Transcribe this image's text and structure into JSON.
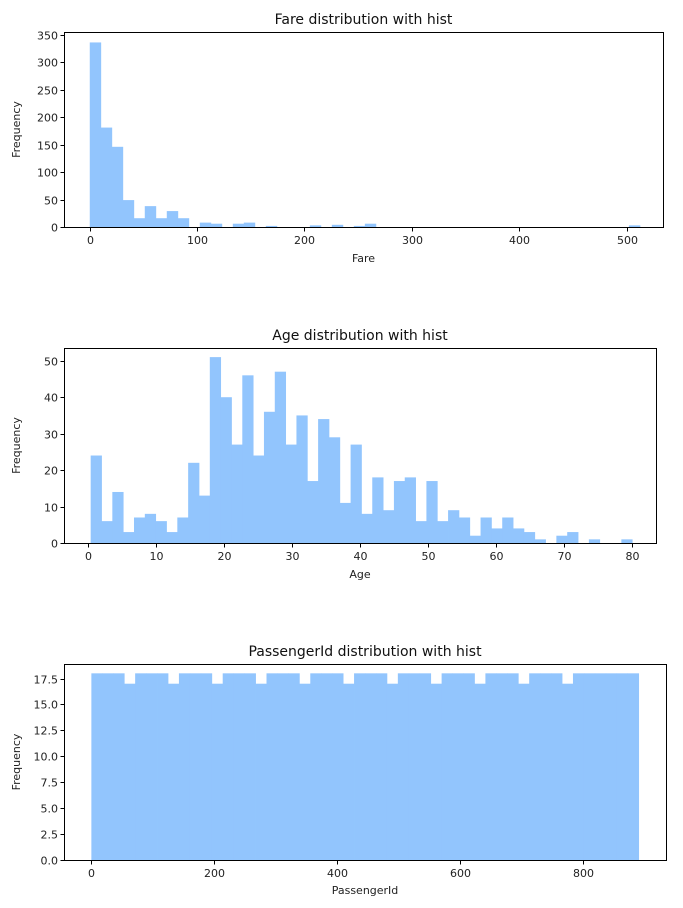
{
  "chart_data": [
    {
      "type": "bar",
      "title": "Fare distribution with hist",
      "xlabel": "Fare",
      "ylabel": "Frequency",
      "xlim": [
        -24,
        534
      ],
      "ylim": [
        0,
        355
      ],
      "xticks": [
        0,
        100,
        200,
        300,
        400,
        500
      ],
      "yticks": [
        0,
        50,
        100,
        150,
        200,
        250,
        300,
        350
      ],
      "bin_start": 0,
      "bin_width": 10.25,
      "values": [
        336,
        181,
        146,
        49,
        16,
        38,
        16,
        29,
        16,
        0,
        8,
        6,
        0,
        6,
        8,
        0,
        2,
        0,
        0,
        0,
        3,
        0,
        4,
        0,
        2,
        6,
        0,
        0,
        0,
        0,
        0,
        0,
        0,
        0,
        0,
        0,
        0,
        0,
        0,
        0,
        0,
        0,
        0,
        0,
        0,
        0,
        0,
        0,
        0,
        3
      ]
    },
    {
      "type": "bar",
      "title": "Age distribution with hist",
      "xlabel": "Age",
      "ylabel": "Frequency",
      "xlim": [
        -3.5,
        83.5
      ],
      "ylim": [
        0,
        53.5
      ],
      "xticks": [
        0,
        10,
        20,
        30,
        40,
        50,
        60,
        70,
        80
      ],
      "yticks": [
        0,
        10,
        20,
        30,
        40,
        50
      ],
      "bin_start": 0.42,
      "bin_width": 1.5916,
      "values": [
        24,
        6,
        14,
        3,
        7,
        8,
        6,
        3,
        7,
        22,
        13,
        51,
        40,
        27,
        46,
        24,
        36,
        47,
        27,
        35,
        17,
        34,
        29,
        11,
        27,
        8,
        18,
        9,
        17,
        18,
        6,
        17,
        6,
        9,
        7,
        2,
        7,
        4,
        7,
        4,
        3,
        1,
        0,
        2,
        3,
        0,
        1,
        0,
        0,
        1
      ]
    },
    {
      "type": "bar",
      "title": "PassengerId distribution with hist",
      "xlabel": "PassengerId",
      "ylabel": "Frequency",
      "xlim": [
        -43.5,
        935.5
      ],
      "ylim": [
        0,
        18.9
      ],
      "xticks": [
        0,
        200,
        400,
        600,
        800
      ],
      "yticks": [
        0.0,
        2.5,
        5.0,
        7.5,
        10.0,
        12.5,
        15.0,
        17.5
      ],
      "bin_start": 1,
      "bin_width": 17.8,
      "values": [
        18,
        18,
        18,
        17,
        18,
        18,
        18,
        17,
        18,
        18,
        18,
        17,
        18,
        18,
        18,
        17,
        18,
        18,
        18,
        17,
        18,
        18,
        18,
        17,
        18,
        18,
        18,
        17,
        18,
        18,
        18,
        17,
        18,
        18,
        18,
        17,
        18,
        18,
        18,
        17,
        18,
        18,
        18,
        17,
        18,
        18,
        18,
        18,
        18,
        18
      ]
    }
  ]
}
